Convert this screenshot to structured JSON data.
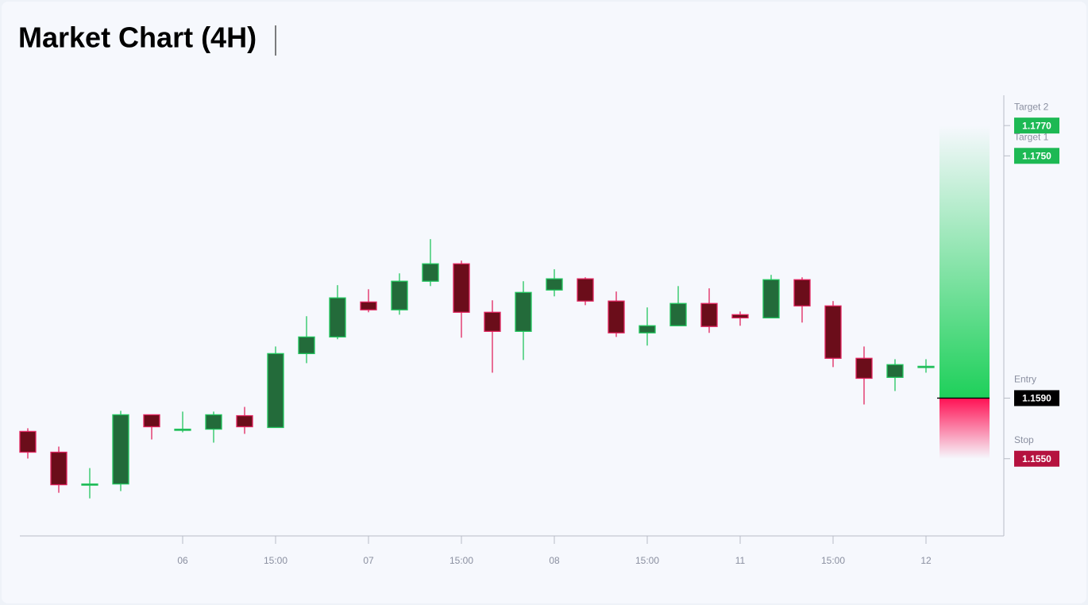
{
  "chart_data": {
    "type": "candlestick",
    "title": "Market Chart (4H)",
    "categories": [
      null,
      null,
      null,
      null,
      null,
      "06",
      null,
      null,
      "15:00",
      null,
      null,
      "07",
      null,
      null,
      "15:00",
      null,
      null,
      "08",
      null,
      null,
      "15:00",
      null,
      null,
      "11",
      null,
      null,
      "15:00",
      null,
      null,
      "12"
    ],
    "open": [
      1.1568,
      1.15543,
      1.15328,
      1.15333,
      1.1579,
      1.1569,
      1.15695,
      1.15784,
      1.15706,
      1.16194,
      1.16304,
      1.16535,
      1.16483,
      1.16672,
      1.16787,
      1.16467,
      1.16341,
      1.16614,
      1.16688,
      1.16541,
      1.16331,
      1.16378,
      1.16525,
      1.16451,
      1.1643,
      1.16682,
      1.16509,
      1.16163,
      1.16037,
      1.16105
    ],
    "high": [
      1.15701,
      1.1558,
      1.15438,
      1.15816,
      1.1579,
      1.15811,
      1.15811,
      1.15842,
      1.16241,
      1.16441,
      1.16646,
      1.16619,
      1.16724,
      1.1695,
      1.16808,
      1.16546,
      1.16672,
      1.16751,
      1.16698,
      1.16604,
      1.16499,
      1.1664,
      1.16625,
      1.16472,
      1.16714,
      1.16698,
      1.16541,
      1.16241,
      1.16157,
      1.16157
    ],
    "low": [
      1.15501,
      1.15275,
      1.15238,
      1.15286,
      1.15627,
      1.15674,
      1.15606,
      1.15664,
      1.15706,
      1.16131,
      1.16289,
      1.16467,
      1.16451,
      1.1664,
      1.16299,
      1.16068,
      1.16152,
      1.16572,
      1.16514,
      1.16304,
      1.16247,
      1.16378,
      1.16331,
      1.16378,
      1.1643,
      1.16399,
      1.16105,
      1.15858,
      1.15947,
      1.16068
    ],
    "close": [
      1.15543,
      1.15328,
      1.15333,
      1.1579,
      1.15711,
      1.15695,
      1.1579,
      1.15711,
      1.16194,
      1.16304,
      1.16562,
      1.16483,
      1.16672,
      1.16787,
      1.16467,
      1.16341,
      1.16598,
      1.16688,
      1.16541,
      1.16331,
      1.16378,
      1.16525,
      1.16373,
      1.1643,
      1.16682,
      1.16509,
      1.16163,
      1.16031,
      1.16121,
      1.1611
    ],
    "up_color": "#22c55e",
    "down_color": "#e0245e",
    "ylim": [
      1.1499,
      1.179
    ],
    "levels": {
      "names": [
        "Target 2",
        "Target 1",
        "Entry",
        "Stop"
      ],
      "values": [
        1.177,
        1.175,
        1.159,
        1.155
      ],
      "value_labels": [
        "1.1770",
        "1.1750",
        "1.1590",
        "1.1550"
      ],
      "colors": [
        "#1db954",
        "#1db954",
        "#000000",
        "#b5123f"
      ]
    }
  }
}
